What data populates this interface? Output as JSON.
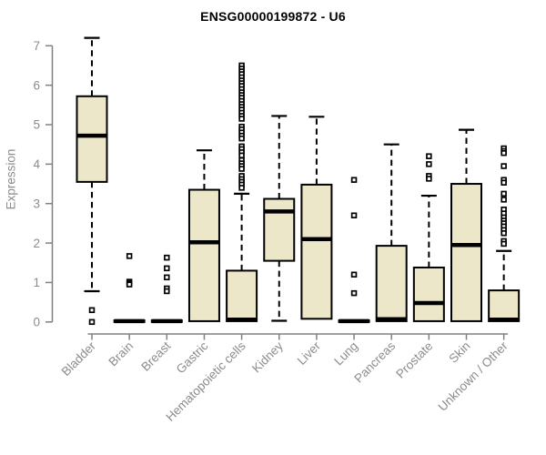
{
  "chart_data": {
    "type": "boxplot",
    "title": "ENSG00000199872 - U6",
    "ylabel": "Expression",
    "xlabel": "",
    "ylim": [
      0,
      7
    ],
    "yticks": [
      0,
      1,
      2,
      3,
      4,
      5,
      6,
      7
    ],
    "grid": false,
    "legend": "none",
    "colors": {
      "box_fill": "#ECE7C8",
      "box_stroke": "#000000",
      "axis": "#808080",
      "tick_text": "#8C8C8C",
      "title_text": "#000000",
      "outlier_fill": "#ffffff"
    },
    "categories": [
      "Bladder",
      "Brain",
      "Breast",
      "Gastric",
      "Hematopoietic cells",
      "Kidney",
      "Liver",
      "Lung",
      "Pancreas",
      "Prostate",
      "Skin",
      "Unknown / Other"
    ],
    "boxes": [
      {
        "category": "Bladder",
        "low": 0.78,
        "q1": 3.55,
        "median": 4.72,
        "q3": 5.72,
        "high": 7.2,
        "outliers": [
          0.3,
          0.0
        ]
      },
      {
        "category": "Brain",
        "low": 0,
        "q1": 0,
        "median": 0.02,
        "q3": 0.04,
        "high": 0.05,
        "outliers": [
          1.67,
          1.02,
          0.98,
          0.95
        ]
      },
      {
        "category": "Breast",
        "low": 0,
        "q1": 0,
        "median": 0.02,
        "q3": 0.04,
        "high": 0.05,
        "outliers": [
          1.63,
          1.36,
          1.13,
          0.85,
          0.78
        ]
      },
      {
        "category": "Gastric",
        "low": 0,
        "q1": 0.02,
        "median": 2.02,
        "q3": 3.35,
        "high": 4.35,
        "outliers": []
      },
      {
        "category": "Hematopoietic cells",
        "low": 0,
        "q1": 0.02,
        "median": 0.06,
        "q3": 1.3,
        "high": 3.25,
        "outliers": [
          6.5,
          6.42,
          6.35,
          6.28,
          6.2,
          6.12,
          6.05,
          5.98,
          5.9,
          5.82,
          5.75,
          5.68,
          5.6,
          5.52,
          5.45,
          5.38,
          5.3,
          5.22,
          5.15,
          4.95,
          4.88,
          4.8,
          4.72,
          4.65,
          4.45,
          4.38,
          4.3,
          4.22,
          4.1,
          4.02,
          3.95,
          3.88,
          3.7,
          3.62,
          3.55,
          3.48,
          3.4
        ]
      },
      {
        "category": "Kidney",
        "low": 0.03,
        "q1": 1.55,
        "median": 2.8,
        "q3": 3.12,
        "high": 5.22,
        "outliers": []
      },
      {
        "category": "Liver",
        "low": 0.05,
        "q1": 0.08,
        "median": 2.1,
        "q3": 3.48,
        "high": 5.2,
        "outliers": []
      },
      {
        "category": "Lung",
        "low": 0,
        "q1": 0,
        "median": 0.02,
        "q3": 0.04,
        "high": 0.05,
        "outliers": [
          3.6,
          2.7,
          1.2,
          0.73
        ]
      },
      {
        "category": "Pancreas",
        "low": 0,
        "q1": 0.02,
        "median": 0.07,
        "q3": 1.93,
        "high": 4.5,
        "outliers": []
      },
      {
        "category": "Prostate",
        "low": 0,
        "q1": 0.02,
        "median": 0.48,
        "q3": 1.38,
        "high": 3.2,
        "outliers": [
          4.2,
          4.0,
          3.7,
          3.63
        ]
      },
      {
        "category": "Skin",
        "low": 0,
        "q1": 0.02,
        "median": 1.95,
        "q3": 3.5,
        "high": 4.87,
        "outliers": []
      },
      {
        "category": "Unknown / Other",
        "low": 0,
        "q1": 0.02,
        "median": 0.06,
        "q3": 0.8,
        "high": 1.8,
        "outliers": [
          4.4,
          4.33,
          4.28,
          3.95,
          3.6,
          3.53,
          3.25,
          3.1,
          2.85,
          2.75,
          2.65,
          2.57,
          2.5,
          2.42,
          2.33,
          2.25,
          2.05,
          1.98
        ]
      }
    ]
  }
}
